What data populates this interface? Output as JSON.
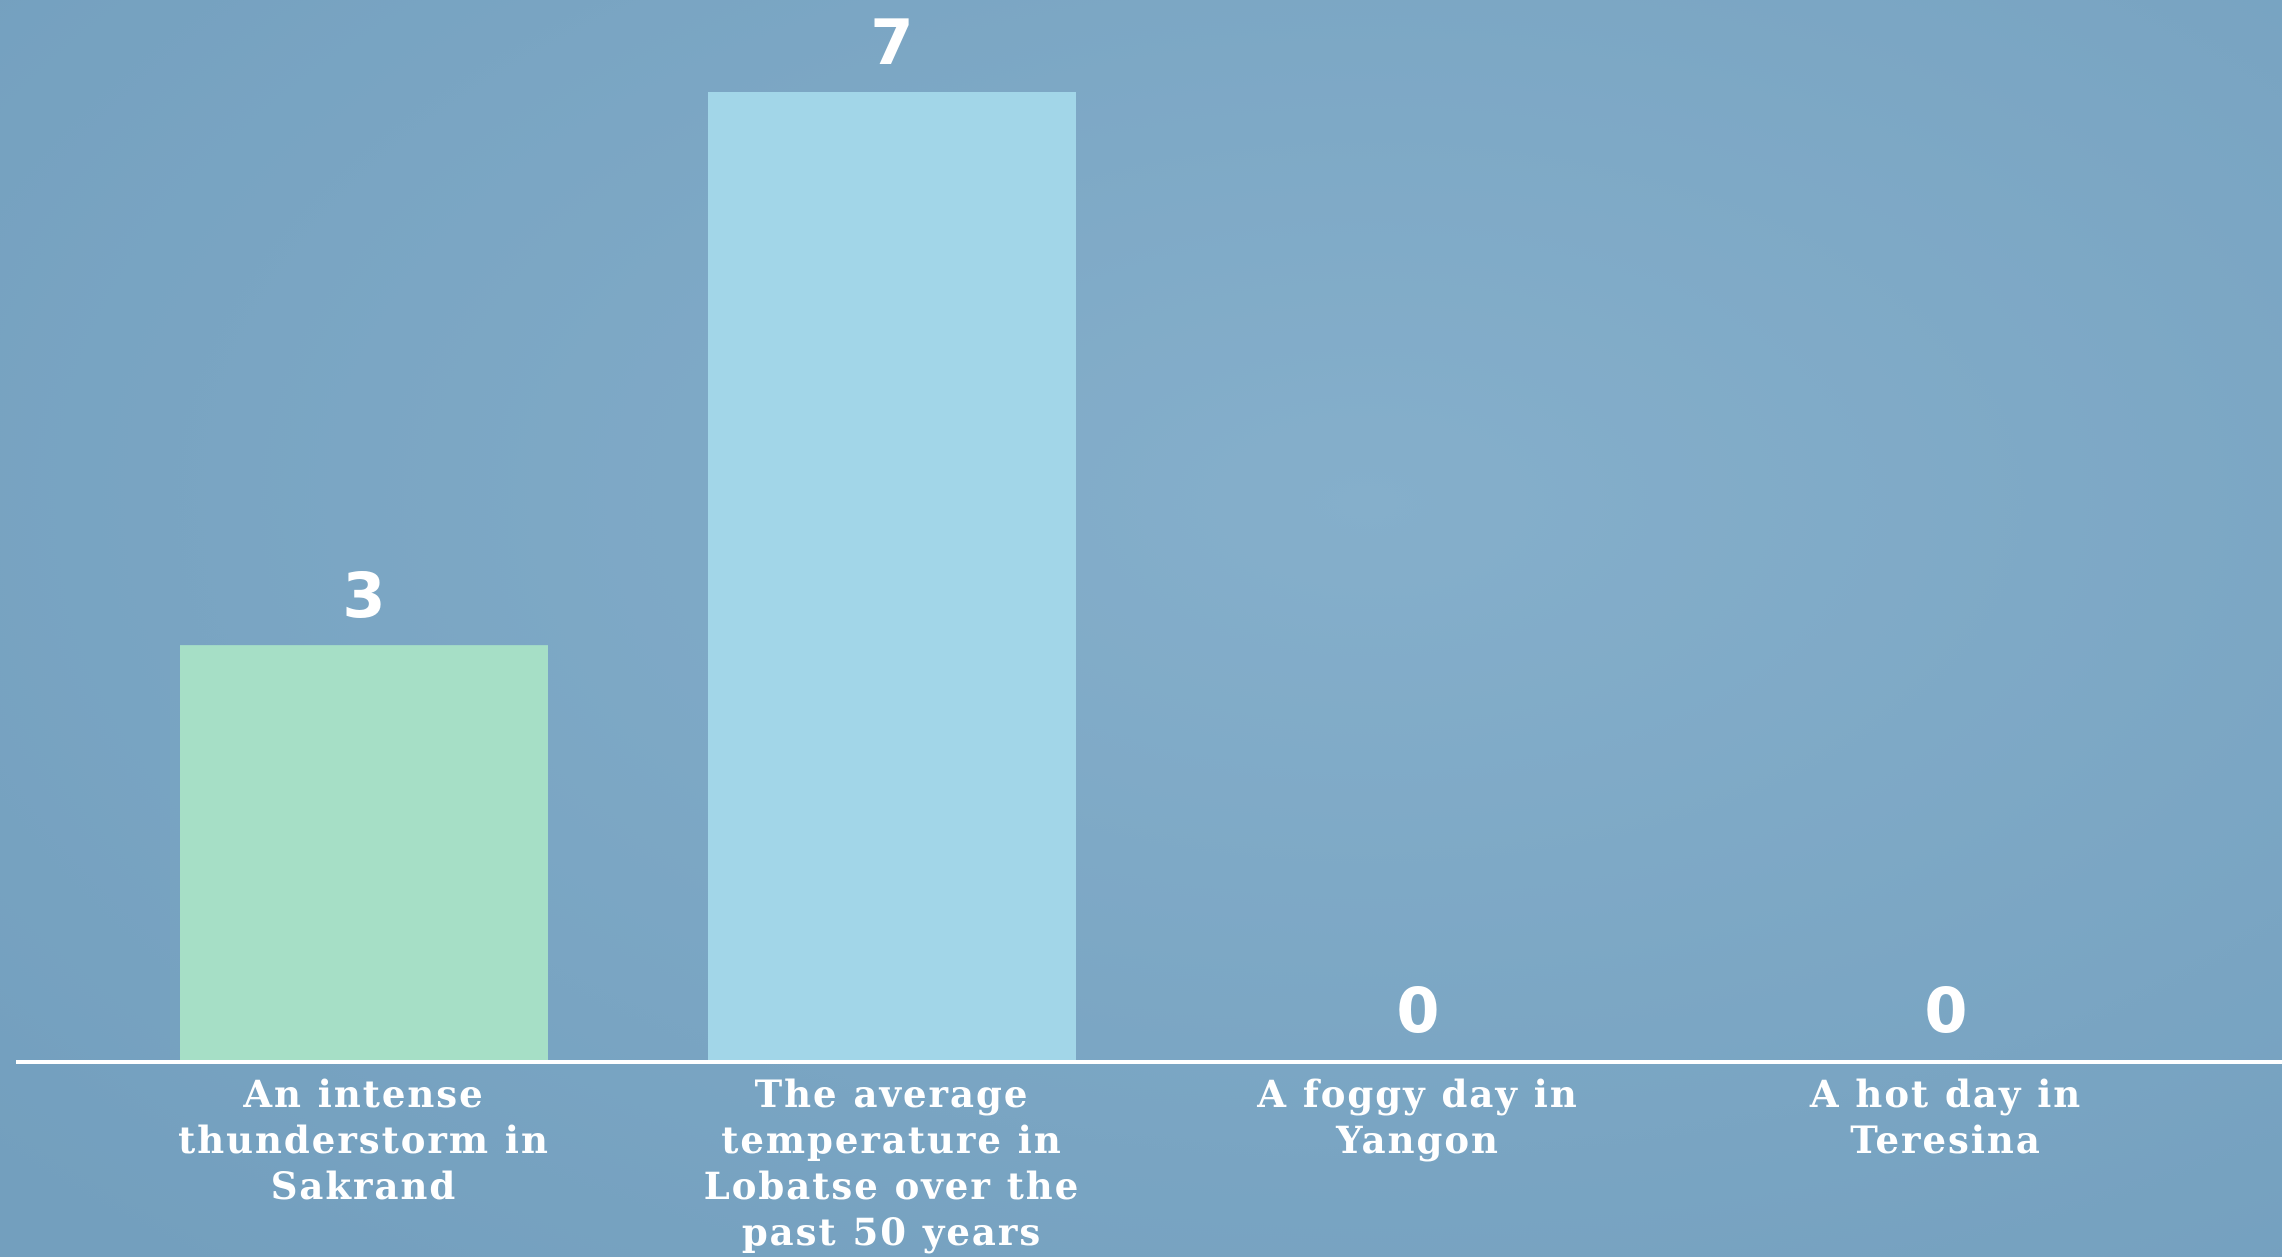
{
  "chart_data": {
    "type": "bar",
    "title": "",
    "xlabel": "",
    "ylabel": "",
    "ylim": [
      0,
      7
    ],
    "categories": [
      "An intense thunderstorm in Sakrand",
      "The average temperature in Lobatse over the past 50 years",
      "A foggy day in Yangon",
      "A hot day in Teresina"
    ],
    "category_lines": [
      [
        "An intense",
        "thunderstorm in",
        "Sakrand"
      ],
      [
        "The average",
        "temperature in",
        "Lobatse over the",
        "past 50 years"
      ],
      [
        "A foggy day in",
        "Yangon"
      ],
      [
        "A hot day in",
        "Teresina"
      ]
    ],
    "values": [
      3,
      7,
      0,
      0
    ],
    "value_labels": [
      "3",
      "7",
      "0",
      "0"
    ],
    "bar_colors": [
      "#a6dfc6",
      "#a2d6e8",
      "#a2d6e8",
      "#a2d6e8"
    ],
    "grid": false,
    "legend": "none"
  },
  "colors": {
    "background": "#7aa8c6",
    "axis": "#ffffff",
    "text": "#ffffff"
  }
}
